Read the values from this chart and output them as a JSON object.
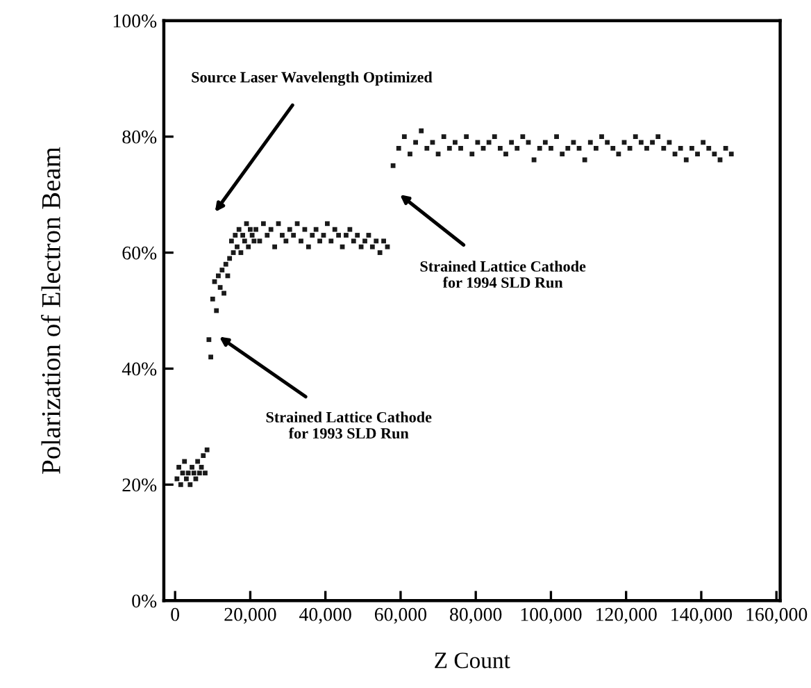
{
  "chart_data": {
    "type": "scatter",
    "xlabel": "Z Count",
    "ylabel": "Polarization of Electron Beam",
    "xlim": [
      -3000,
      161000
    ],
    "ylim": [
      0,
      100
    ],
    "xticks": [
      {
        "value": 0,
        "label": "0"
      },
      {
        "value": 20000,
        "label": "20,000"
      },
      {
        "value": 40000,
        "label": "40,000"
      },
      {
        "value": 60000,
        "label": "60,000"
      },
      {
        "value": 80000,
        "label": "80,000"
      },
      {
        "value": 100000,
        "label": "100,000"
      },
      {
        "value": 120000,
        "label": "120,000"
      },
      {
        "value": 140000,
        "label": "140,000"
      },
      {
        "value": 160000,
        "label": "160,000"
      }
    ],
    "yticks": [
      {
        "value": 0,
        "label": "0%"
      },
      {
        "value": 20,
        "label": "20%"
      },
      {
        "value": 40,
        "label": "40%"
      },
      {
        "value": 60,
        "label": "60%"
      },
      {
        "value": 80,
        "label": "80%"
      },
      {
        "value": 100,
        "label": "100%"
      }
    ],
    "grid": false,
    "legend": false,
    "marker": "square",
    "series": [
      {
        "color": "#1a1a1a",
        "x": [
          500,
          1000,
          1500,
          2000,
          2500,
          3000,
          3500,
          4000,
          4500,
          5000,
          5500,
          6000,
          6500,
          7000,
          7500,
          8000,
          8500,
          9000,
          9500,
          10000,
          10500,
          11000,
          11500,
          12000,
          12500,
          13000,
          13500,
          14000,
          14500,
          15000,
          15500,
          16000,
          16500,
          17000,
          17500,
          18000,
          18500,
          19000,
          19500,
          20000,
          20500,
          21000,
          21500,
          22500,
          23500,
          24500,
          25500,
          26500,
          27500,
          28500,
          29500,
          30500,
          31500,
          32500,
          33500,
          34500,
          35500,
          36500,
          37500,
          38500,
          39500,
          40500,
          41500,
          42500,
          43500,
          44500,
          45500,
          46500,
          47500,
          48500,
          49500,
          50500,
          51500,
          52500,
          53500,
          54500,
          55500,
          56500,
          58000,
          59500,
          61000,
          62500,
          64000,
          65500,
          67000,
          68500,
          70000,
          71500,
          73000,
          74500,
          76000,
          77500,
          79000,
          80500,
          82000,
          83500,
          85000,
          86500,
          88000,
          89500,
          91000,
          92500,
          94000,
          95500,
          97000,
          98500,
          100000,
          101500,
          103000,
          104500,
          106000,
          107500,
          109000,
          110500,
          112000,
          113500,
          115000,
          116500,
          118000,
          119500,
          121000,
          122500,
          124000,
          125500,
          127000,
          128500,
          130000,
          131500,
          133000,
          134500,
          136000,
          137500,
          139000,
          140500,
          142000,
          143500,
          145000,
          146500,
          148000
        ],
        "values": [
          21,
          23,
          20,
          22,
          24,
          21,
          22,
          20,
          23,
          22,
          21,
          24,
          22,
          23,
          25,
          22,
          26,
          45,
          42,
          52,
          55,
          50,
          56,
          54,
          57,
          53,
          58,
          56,
          59,
          62,
          60,
          63,
          61,
          64,
          60,
          63,
          62,
          65,
          61,
          64,
          63,
          62,
          64,
          62,
          65,
          63,
          64,
          61,
          65,
          63,
          62,
          64,
          63,
          65,
          62,
          64,
          61,
          63,
          64,
          62,
          63,
          65,
          62,
          64,
          63,
          61,
          63,
          64,
          62,
          63,
          61,
          62,
          63,
          61,
          62,
          60,
          62,
          61,
          75,
          78,
          80,
          77,
          79,
          81,
          78,
          79,
          77,
          80,
          78,
          79,
          78,
          80,
          77,
          79,
          78,
          79,
          80,
          78,
          77,
          79,
          78,
          80,
          79,
          76,
          78,
          79,
          78,
          80,
          77,
          78,
          79,
          78,
          76,
          79,
          78,
          80,
          79,
          78,
          77,
          79,
          78,
          80,
          79,
          78,
          79,
          80,
          78,
          79,
          77,
          78,
          76,
          78,
          77,
          79,
          78,
          77,
          76,
          78,
          77
        ]
      }
    ],
    "annotations": [
      "Source Laser Wavelength Optimized",
      "Strained Lattice Cathode\nfor 1993 SLD Run",
      "Strained Lattice Cathode\nfor 1994 SLD Run"
    ]
  }
}
